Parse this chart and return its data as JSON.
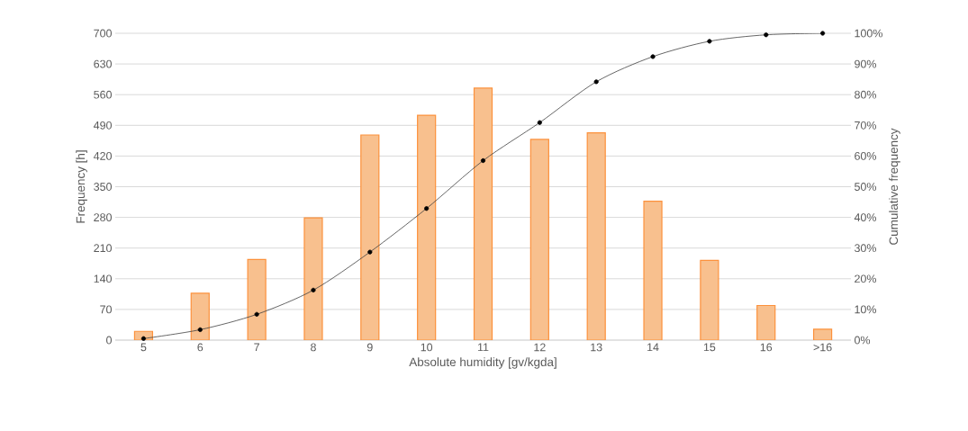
{
  "chart_data": {
    "type": "bar",
    "categories": [
      "5",
      "6",
      "7",
      "8",
      "9",
      "10",
      "11",
      "12",
      "13",
      "14",
      "15",
      "16",
      ">16"
    ],
    "series": [
      {
        "color": "#f8c08e",
        "values": [
          20,
          107,
          184,
          279,
          468,
          513,
          575,
          458,
          473,
          317,
          182,
          79,
          25
        ]
      },
      {
        "type": "line",
        "axis": "y2",
        "color": "#404040",
        "values": [
          0.5,
          3.4,
          8.4,
          16.3,
          28.7,
          42.9,
          58.5,
          70.9,
          84.2,
          92.4,
          97.4,
          99.5,
          100
        ]
      }
    ],
    "xlabel": "Absolute humidity [gv/kgda]",
    "ylabel": "Frequency [h]",
    "y2label": "Cumulative frequency",
    "ylim": [
      0,
      700
    ],
    "yticks": [
      0,
      70,
      140,
      210,
      280,
      350,
      420,
      490,
      560,
      630,
      700
    ],
    "y2lim": [
      0,
      100
    ],
    "y2ticks": [
      {
        "value": 0,
        "label": "0%"
      },
      {
        "value": 10,
        "label": "10%"
      },
      {
        "value": 20,
        "label": "20%"
      },
      {
        "value": 30,
        "label": "30%"
      },
      {
        "value": 40,
        "label": "40%"
      },
      {
        "value": 50,
        "label": "50%"
      },
      {
        "value": 60,
        "label": "60%"
      },
      {
        "value": 70,
        "label": "70%"
      },
      {
        "value": 80,
        "label": "80%"
      },
      {
        "value": 90,
        "label": "90%"
      },
      {
        "value": 100,
        "label": "100%"
      }
    ],
    "grid": "y",
    "marker": "circle"
  }
}
